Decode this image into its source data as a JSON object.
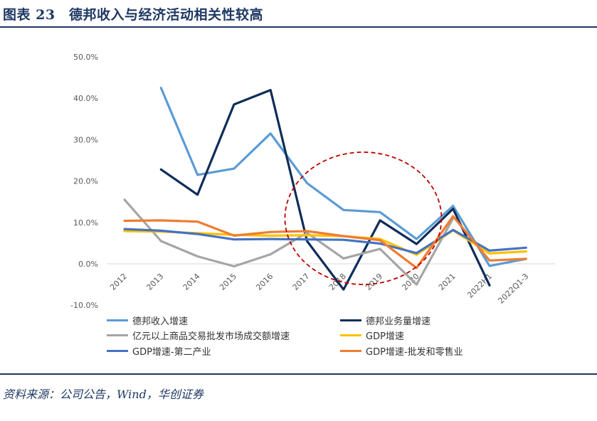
{
  "header": {
    "title": "图表 23　德邦收入与经济活动相关性较高"
  },
  "footer": {
    "source": "资料来源：公司公告，Wind，华创证券"
  },
  "chart_data": {
    "type": "line",
    "categories": [
      "2012",
      "2013",
      "2014",
      "2015",
      "2016",
      "2017",
      "2018",
      "2019",
      "2020",
      "2021",
      "2022H1",
      "2022Q1-3"
    ],
    "ylim": [
      -10,
      50
    ],
    "yticks": [
      "-10.0%",
      "0.0%",
      "10.0%",
      "20.0%",
      "30.0%",
      "40.0%",
      "50.0%"
    ],
    "grid": false,
    "legend_position": "bottom",
    "annotation": "dashed red ellipse highlighting 2017-2020",
    "series": [
      {
        "name": "德邦收入增速",
        "color": "#5b9bd5",
        "values": [
          null,
          42.5,
          21.5,
          23.0,
          31.5,
          19.5,
          13.0,
          12.5,
          6.0,
          14.0,
          -0.5,
          1.2
        ]
      },
      {
        "name": "德邦业务量增速",
        "color": "#0f2d59",
        "values": [
          null,
          22.8,
          16.7,
          38.5,
          42.0,
          5.5,
          -6.2,
          10.5,
          4.8,
          13.3,
          -5.2,
          null
        ]
      },
      {
        "name": "亿元以上商品交易批发市场成交额增速",
        "color": "#a5a5a5",
        "values": [
          15.5,
          5.5,
          1.8,
          -0.6,
          2.3,
          7.5,
          1.3,
          3.6,
          -5.0,
          11.0,
          null,
          null
        ]
      },
      {
        "name": "GDP增速",
        "color": "#ffc000",
        "values": [
          7.9,
          7.8,
          7.4,
          7.0,
          6.8,
          6.9,
          6.7,
          6.0,
          2.2,
          8.1,
          2.5,
          3.0
        ]
      },
      {
        "name": "GDP增速-第二产业",
        "color": "#4472c4",
        "values": [
          8.4,
          8.0,
          7.2,
          5.9,
          6.0,
          5.9,
          5.8,
          4.9,
          2.6,
          8.2,
          3.2,
          3.9
        ]
      },
      {
        "name": "GDP增速-批发和零售业",
        "color": "#ed7d31",
        "values": [
          10.4,
          10.5,
          10.2,
          6.8,
          7.7,
          7.9,
          6.7,
          5.7,
          -1.0,
          11.5,
          0.8,
          1.2
        ]
      }
    ]
  }
}
